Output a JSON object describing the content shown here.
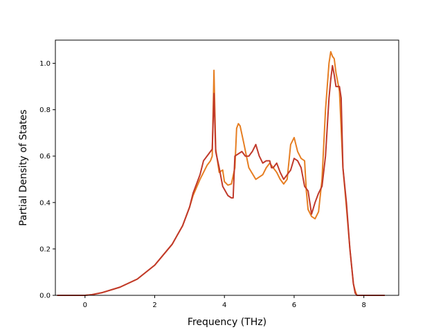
{
  "chart_data": {
    "type": "line",
    "title": "",
    "xlabel": "Frequency (THz)",
    "ylabel": "Partial Density of States",
    "xlim": [
      -0.85,
      9.0
    ],
    "ylim": [
      0.0,
      1.1
    ],
    "xticks": [
      0,
      2,
      4,
      6,
      8
    ],
    "yticks": [
      0.0,
      0.2,
      0.4,
      0.6,
      0.8,
      1.0
    ],
    "xtick_labels": [
      "0",
      "2",
      "4",
      "6",
      "8"
    ],
    "ytick_labels": [
      "0.0",
      "0.2",
      "0.4",
      "0.6",
      "0.8",
      "1.0"
    ],
    "grid": false,
    "series": [
      {
        "color": "#e67e22",
        "x": [
          -0.8,
          0.0,
          0.2,
          0.5,
          1.0,
          1.5,
          2.0,
          2.5,
          2.8,
          3.0,
          3.1,
          3.3,
          3.5,
          3.6,
          3.65,
          3.7,
          3.75,
          3.85,
          3.95,
          4.0,
          4.1,
          4.2,
          4.3,
          4.35,
          4.4,
          4.45,
          4.55,
          4.7,
          4.9,
          5.1,
          5.2,
          5.3,
          5.4,
          5.5,
          5.6,
          5.7,
          5.8,
          5.9,
          6.0,
          6.1,
          6.2,
          6.3,
          6.35,
          6.4,
          6.5,
          6.6,
          6.7,
          6.8,
          6.9,
          7.0,
          7.05,
          7.1,
          7.15,
          7.2,
          7.3,
          7.4,
          7.5,
          7.6,
          7.7,
          7.75,
          7.8,
          8.0,
          8.6
        ],
        "y": [
          0.0,
          0.0,
          0.003,
          0.012,
          0.035,
          0.07,
          0.13,
          0.22,
          0.3,
          0.38,
          0.43,
          0.5,
          0.56,
          0.58,
          0.6,
          0.97,
          0.63,
          0.53,
          0.54,
          0.49,
          0.475,
          0.48,
          0.55,
          0.72,
          0.74,
          0.73,
          0.66,
          0.55,
          0.5,
          0.52,
          0.55,
          0.57,
          0.55,
          0.53,
          0.5,
          0.48,
          0.5,
          0.65,
          0.68,
          0.62,
          0.59,
          0.58,
          0.45,
          0.37,
          0.34,
          0.33,
          0.36,
          0.5,
          0.8,
          1.0,
          1.05,
          1.03,
          1.02,
          0.96,
          0.88,
          0.55,
          0.38,
          0.2,
          0.05,
          0.02,
          0.0,
          0.0,
          0.0
        ]
      },
      {
        "color": "#c0392b",
        "x": [
          -0.8,
          0.0,
          0.2,
          0.5,
          1.0,
          1.5,
          2.0,
          2.5,
          2.8,
          3.0,
          3.1,
          3.3,
          3.4,
          3.5,
          3.6,
          3.65,
          3.7,
          3.75,
          3.85,
          3.95,
          4.1,
          4.2,
          4.25,
          4.3,
          4.4,
          4.5,
          4.6,
          4.7,
          4.8,
          4.9,
          5.0,
          5.1,
          5.2,
          5.3,
          5.35,
          5.4,
          5.5,
          5.6,
          5.7,
          5.8,
          5.9,
          6.0,
          6.1,
          6.2,
          6.3,
          6.4,
          6.5,
          6.6,
          6.7,
          6.8,
          6.9,
          7.0,
          7.05,
          7.1,
          7.15,
          7.2,
          7.25,
          7.3,
          7.35,
          7.4,
          7.5,
          7.6,
          7.7,
          7.75,
          7.8,
          8.0,
          8.6
        ],
        "y": [
          0.0,
          0.0,
          0.003,
          0.012,
          0.035,
          0.07,
          0.13,
          0.22,
          0.3,
          0.38,
          0.44,
          0.52,
          0.58,
          0.6,
          0.62,
          0.63,
          0.87,
          0.62,
          0.55,
          0.47,
          0.43,
          0.42,
          0.42,
          0.6,
          0.61,
          0.62,
          0.6,
          0.6,
          0.62,
          0.65,
          0.6,
          0.57,
          0.58,
          0.58,
          0.55,
          0.55,
          0.57,
          0.53,
          0.5,
          0.52,
          0.54,
          0.59,
          0.58,
          0.55,
          0.47,
          0.45,
          0.35,
          0.4,
          0.44,
          0.47,
          0.6,
          0.85,
          0.93,
          0.99,
          0.95,
          0.9,
          0.9,
          0.9,
          0.85,
          0.55,
          0.4,
          0.2,
          0.05,
          0.01,
          0.0,
          0.0,
          0.0
        ]
      }
    ]
  }
}
